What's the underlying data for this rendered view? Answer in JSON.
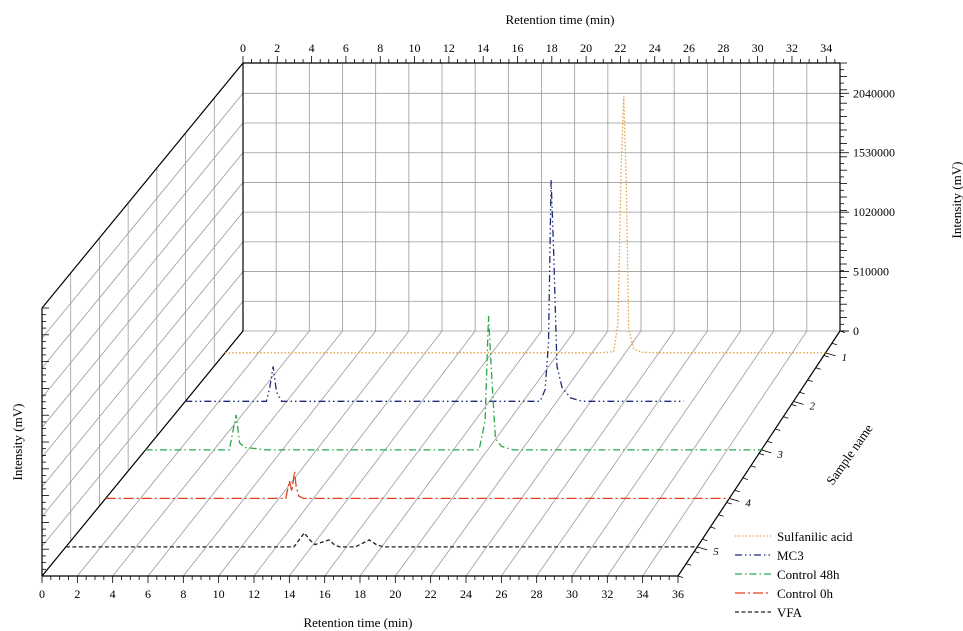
{
  "chart_data": {
    "type": "line",
    "subtype": "3d-waterfall",
    "title": "",
    "x_top_label": "Retention time (min)",
    "x_bottom_label": "Retention time (min)",
    "y_label": "Sample name",
    "z_right_label": "Intensity (mV)",
    "z_left_label": "Intensity (mV)",
    "x_top_ticks": [
      "0",
      "2",
      "4",
      "6",
      "8",
      "10",
      "12",
      "14",
      "16",
      "18",
      "20",
      "22",
      "24",
      "26",
      "28",
      "30",
      "32",
      "34"
    ],
    "x_bottom_ticks": [
      "0",
      "2",
      "4",
      "6",
      "8",
      "10",
      "12",
      "14",
      "16",
      "18",
      "20",
      "22",
      "24",
      "26",
      "28",
      "30",
      "32",
      "34",
      "36"
    ],
    "x_range": [
      0,
      36
    ],
    "z_ticks": [
      "0",
      "510000",
      "1020000",
      "1530000",
      "2040000"
    ],
    "z_range": [
      0,
      2300000
    ],
    "sample_ticks": [
      "1",
      "2",
      "3",
      "4",
      "5"
    ],
    "legend_position": "bottom-right",
    "series": [
      {
        "name": "Sulfanilic acid",
        "sample": 1,
        "color": "#e8a040",
        "dash": "dotted",
        "x": [
          0,
          22.5,
          23.3,
          23.55,
          23.75,
          23.9,
          24.05,
          24.2,
          24.5,
          25,
          26,
          36
        ],
        "z": [
          0,
          0,
          10000,
          250000,
          1600000,
          2200000,
          1500000,
          200000,
          30000,
          5000,
          0,
          0
        ]
      },
      {
        "name": "MC3",
        "sample": 2,
        "color": "#1f2a7a",
        "dash": "dash-dot-dot",
        "x": [
          0,
          4.8,
          5.0,
          5.2,
          5.4,
          5.7,
          21,
          21.3,
          21.5,
          21.65,
          21.8,
          22.0,
          22.3,
          22.8,
          23.5,
          29.5
        ],
        "z": [
          0,
          0,
          120000,
          300000,
          80000,
          0,
          0,
          100000,
          500000,
          1900000,
          1300000,
          300000,
          120000,
          30000,
          0,
          0
        ]
      },
      {
        "name": "Control 48h",
        "sample": 3,
        "color": "#2aa84a",
        "dash": "dash-dot",
        "x": [
          0,
          4.9,
          5.1,
          5.3,
          5.5,
          5.8,
          6.5,
          7.0,
          19.5,
          19.85,
          20.05,
          20.25,
          20.45,
          20.8,
          21.5,
          36
        ],
        "z": [
          0,
          0,
          150000,
          300000,
          60000,
          20000,
          10000,
          0,
          0,
          250000,
          1150000,
          600000,
          100000,
          30000,
          0,
          0
        ]
      },
      {
        "name": "Control 0h",
        "sample": 4,
        "color": "#e04020",
        "dash": "long-dash-dot",
        "x": [
          0,
          10.4,
          10.6,
          10.75,
          10.9,
          11.0,
          11.15,
          11.4,
          36
        ],
        "z": [
          0,
          0,
          150000,
          60000,
          230000,
          100000,
          20000,
          0,
          0
        ]
      },
      {
        "name": "VFA",
        "sample": 5,
        "color": "#222222",
        "dash": "short-dash",
        "x": [
          0,
          13.0,
          13.3,
          13.6,
          13.9,
          14.2,
          14.6,
          15.0,
          15.3,
          15.6,
          16.0,
          16.5,
          16.9,
          17.3,
          17.7,
          18.1,
          18.5,
          36
        ],
        "z": [
          0,
          0,
          60000,
          120000,
          60000,
          20000,
          40000,
          60000,
          20000,
          0,
          0,
          0,
          30000,
          60000,
          20000,
          0,
          0,
          0
        ]
      }
    ]
  }
}
